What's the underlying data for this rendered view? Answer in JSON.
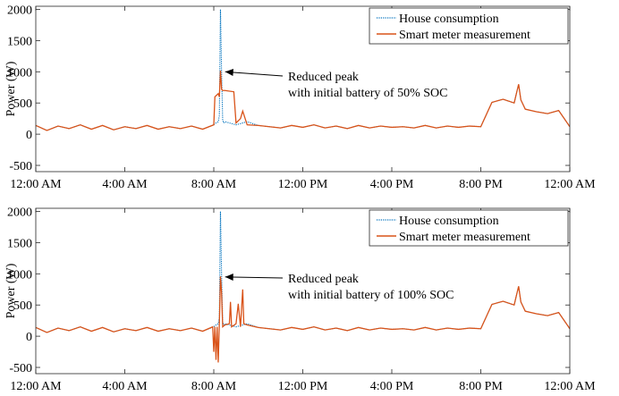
{
  "chart_data": [
    {
      "type": "line",
      "ylabel": "Power (W)",
      "ylim": [
        -600,
        2050
      ],
      "yticks": [
        -500,
        0,
        500,
        1000,
        1500,
        2000
      ],
      "xlim": [
        0,
        24
      ],
      "xticks": [
        0,
        4,
        8,
        12,
        16,
        20,
        24
      ],
      "xtick_labels": [
        "12:00 AM",
        "4:00 AM",
        "8:00 AM",
        "12:00 PM",
        "4:00 PM",
        "8:00 PM",
        "12:00 AM"
      ],
      "legend_position": "top-right",
      "annotation": {
        "lines": [
          "Reduced peak",
          "with initial battery of 50% SOC"
        ],
        "target": {
          "x": 8.35,
          "y": 1000
        }
      },
      "series": [
        {
          "name": "House consumption",
          "color": "#0072BD",
          "style": "dotted",
          "x": [
            0,
            0.5,
            1,
            1.5,
            2,
            2.5,
            3,
            3.5,
            4,
            4.5,
            5,
            5.5,
            6,
            6.5,
            7,
            7.5,
            8.0,
            8.05,
            8.2,
            8.25,
            8.3,
            8.35,
            8.4,
            8.45,
            8.5,
            9.0,
            9.5,
            10,
            10.5,
            11,
            11.5,
            12,
            12.5,
            13,
            13.5,
            14,
            14.5,
            15,
            15.5,
            16,
            16.5,
            17,
            17.5,
            18,
            18.5,
            19,
            19.5,
            20,
            20.5,
            21,
            21.5,
            21.7,
            21.8,
            22,
            22.5,
            23,
            23.5,
            24
          ],
          "y": [
            140,
            60,
            130,
            90,
            150,
            80,
            140,
            70,
            120,
            90,
            140,
            80,
            120,
            90,
            130,
            80,
            150,
            170,
            200,
            300,
            2000,
            1000,
            220,
            180,
            200,
            150,
            200,
            140,
            120,
            100,
            140,
            110,
            150,
            100,
            130,
            90,
            140,
            100,
            130,
            110,
            120,
            100,
            140,
            100,
            130,
            110,
            130,
            120,
            510,
            560,
            500,
            800,
            550,
            400,
            360,
            330,
            380,
            120
          ]
        },
        {
          "name": "Smart meter measurement",
          "color": "#D95319",
          "style": "solid",
          "x": [
            0,
            0.5,
            1,
            1.5,
            2,
            2.5,
            3,
            3.5,
            4,
            4.5,
            5,
            5.5,
            6,
            6.5,
            7,
            7.5,
            8.0,
            8.05,
            8.2,
            8.25,
            8.3,
            8.35,
            8.4,
            8.5,
            8.9,
            9.0,
            9.2,
            9.3,
            9.5,
            10,
            10.5,
            11,
            11.5,
            12,
            12.5,
            13,
            13.5,
            14,
            14.5,
            15,
            15.5,
            16,
            16.5,
            17,
            17.5,
            18,
            18.5,
            19,
            19.5,
            20,
            20.5,
            21,
            21.5,
            21.7,
            21.8,
            22,
            22.5,
            23,
            23.5,
            24
          ],
          "y": [
            140,
            60,
            130,
            90,
            150,
            80,
            140,
            70,
            120,
            90,
            140,
            80,
            120,
            90,
            130,
            80,
            150,
            600,
            650,
            600,
            1020,
            720,
            700,
            700,
            680,
            180,
            250,
            370,
            150,
            140,
            120,
            100,
            140,
            110,
            150,
            100,
            130,
            90,
            140,
            100,
            130,
            110,
            120,
            100,
            140,
            100,
            130,
            110,
            130,
            120,
            510,
            560,
            500,
            800,
            550,
            400,
            360,
            330,
            380,
            120
          ]
        }
      ]
    },
    {
      "type": "line",
      "ylabel": "Power (W)",
      "ylim": [
        -600,
        2050
      ],
      "yticks": [
        -500,
        0,
        500,
        1000,
        1500,
        2000
      ],
      "xlim": [
        0,
        24
      ],
      "xticks": [
        0,
        4,
        8,
        12,
        16,
        20,
        24
      ],
      "xtick_labels": [
        "12:00 AM",
        "4:00 AM",
        "8:00 AM",
        "12:00 PM",
        "4:00 PM",
        "8:00 PM",
        "12:00 AM"
      ],
      "legend_position": "top-right",
      "annotation": {
        "lines": [
          "Reduced peak",
          "with initial battery of 100% SOC"
        ],
        "target": {
          "x": 8.35,
          "y": 950
        }
      },
      "series": [
        {
          "name": "House consumption",
          "color": "#0072BD",
          "style": "dotted",
          "x": [
            0,
            0.5,
            1,
            1.5,
            2,
            2.5,
            3,
            3.5,
            4,
            4.5,
            5,
            5.5,
            6,
            6.5,
            7,
            7.5,
            8.0,
            8.05,
            8.2,
            8.25,
            8.3,
            8.35,
            8.4,
            8.45,
            8.5,
            9.0,
            9.5,
            10,
            10.5,
            11,
            11.5,
            12,
            12.5,
            13,
            13.5,
            14,
            14.5,
            15,
            15.5,
            16,
            16.5,
            17,
            17.5,
            18,
            18.5,
            19,
            19.5,
            20,
            20.5,
            21,
            21.5,
            21.7,
            21.8,
            22,
            22.5,
            23,
            23.5,
            24
          ],
          "y": [
            140,
            60,
            130,
            90,
            150,
            80,
            140,
            70,
            120,
            90,
            140,
            80,
            120,
            90,
            130,
            80,
            150,
            170,
            200,
            300,
            2000,
            1000,
            220,
            180,
            200,
            150,
            200,
            140,
            120,
            100,
            140,
            110,
            150,
            100,
            130,
            90,
            140,
            100,
            130,
            110,
            120,
            100,
            140,
            100,
            130,
            110,
            130,
            120,
            510,
            560,
            500,
            800,
            550,
            400,
            360,
            330,
            380,
            120
          ]
        },
        {
          "name": "Smart meter measurement",
          "color": "#D95319",
          "style": "solid",
          "x": [
            0,
            0.5,
            1,
            1.5,
            2,
            2.5,
            3,
            3.5,
            4,
            4.5,
            5,
            5.5,
            6,
            6.5,
            7,
            7.5,
            7.95,
            8.0,
            8.05,
            8.1,
            8.15,
            8.2,
            8.25,
            8.3,
            8.35,
            8.4,
            8.5,
            8.7,
            8.75,
            8.8,
            9.0,
            9.1,
            9.2,
            9.3,
            9.35,
            9.5,
            10,
            10.5,
            11,
            11.5,
            12,
            12.5,
            13,
            13.5,
            14,
            14.5,
            15,
            15.5,
            16,
            16.5,
            17,
            17.5,
            18,
            18.5,
            19,
            19.5,
            20,
            20.5,
            21,
            21.5,
            21.7,
            21.8,
            22,
            22.5,
            23,
            23.5,
            24
          ],
          "y": [
            140,
            60,
            130,
            90,
            150,
            80,
            140,
            70,
            120,
            90,
            140,
            80,
            120,
            90,
            130,
            80,
            150,
            -250,
            150,
            -380,
            150,
            -420,
            200,
            960,
            700,
            150,
            180,
            200,
            550,
            150,
            200,
            520,
            150,
            750,
            200,
            180,
            140,
            120,
            100,
            140,
            110,
            150,
            100,
            130,
            90,
            140,
            100,
            130,
            110,
            120,
            100,
            140,
            100,
            130,
            110,
            130,
            120,
            510,
            560,
            500,
            800,
            550,
            400,
            360,
            330,
            380,
            120
          ]
        }
      ]
    }
  ]
}
